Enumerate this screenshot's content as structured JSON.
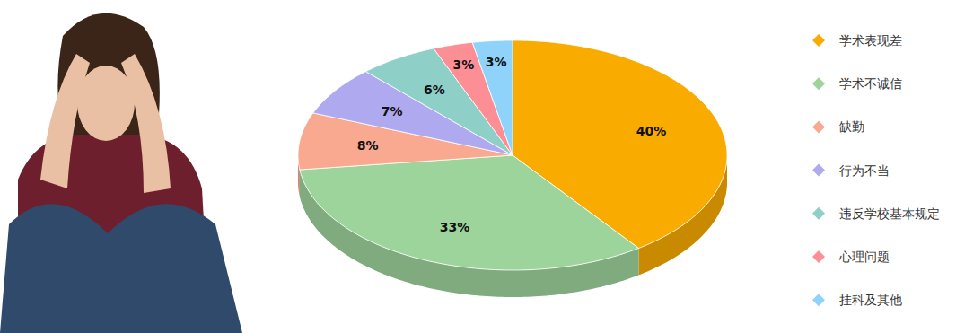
{
  "chart_data": {
    "type": "pie",
    "categories": [
      "学术表现差",
      "学术不诚信",
      "缺勤",
      "行为不当",
      "违反学校基本规定",
      "心理问题",
      "挂科及其他"
    ],
    "values": [
      40,
      33,
      8,
      7,
      6,
      3,
      3
    ],
    "value_labels": [
      "40%",
      "33%",
      "8%",
      "7%",
      "6%",
      "3%",
      "3%"
    ],
    "colors": [
      "#f9ab00",
      "#9dd49c",
      "#f8a98f",
      "#afa9f0",
      "#8ecfc7",
      "#fb8f95",
      "#8fd3fb"
    ],
    "data_labels": true,
    "legend": "right"
  }
}
